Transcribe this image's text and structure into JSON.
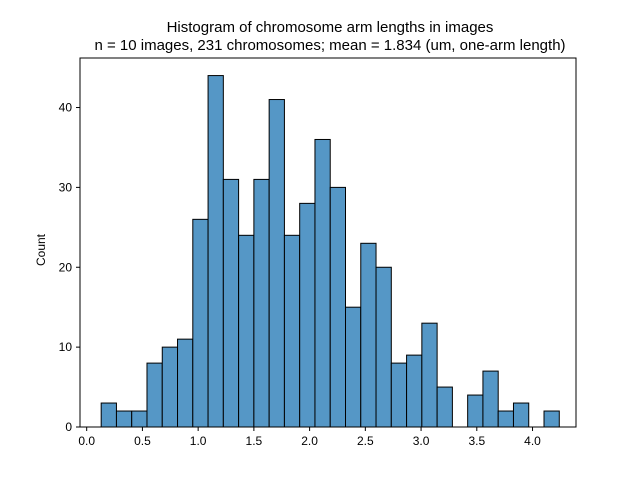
{
  "chart_data": {
    "type": "bar",
    "title": "Histogram of chromosome arm lengths in images",
    "subtitle": "n = 10 images, 231 chromosomes; mean = 1.834 (um, one-arm length)",
    "xlabel": "",
    "ylabel": "Count",
    "xlim": [
      -0.06,
      4.39
    ],
    "ylim": [
      0,
      46.2
    ],
    "x_ticks": [
      "0.0",
      "0.5",
      "1.0",
      "1.5",
      "2.0",
      "2.5",
      "3.0",
      "3.5",
      "4.0"
    ],
    "y_ticks": [
      "0",
      "10",
      "20",
      "30",
      "40"
    ],
    "bin_edges": [
      0.13,
      0.267,
      0.404,
      0.541,
      0.678,
      0.815,
      0.952,
      1.089,
      1.226,
      1.363,
      1.5,
      1.637,
      1.774,
      1.911,
      2.048,
      2.185,
      2.322,
      2.459,
      2.596,
      2.733,
      2.87,
      3.007,
      3.144,
      3.281,
      3.418,
      3.555,
      3.692,
      3.829,
      3.966,
      4.103,
      4.24
    ],
    "values": [
      3,
      2,
      2,
      8,
      10,
      11,
      26,
      44,
      31,
      24,
      31,
      41,
      24,
      28,
      36,
      30,
      15,
      23,
      20,
      8,
      9,
      13,
      5,
      0,
      4,
      7,
      2,
      3,
      0,
      2
    ],
    "bar_color": "#5597c6",
    "edge_color": "#000000",
    "grid": false
  }
}
